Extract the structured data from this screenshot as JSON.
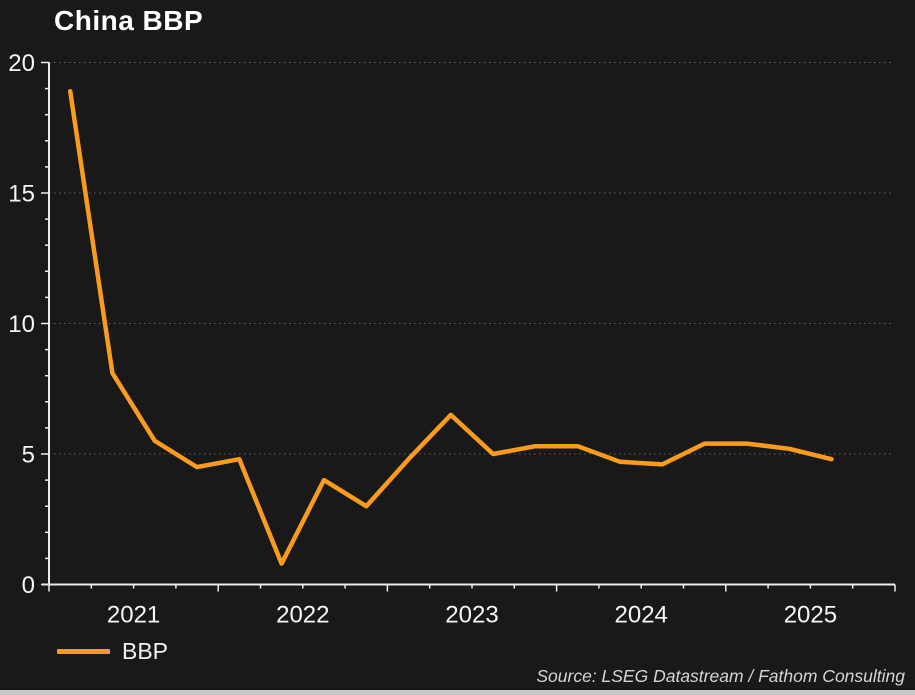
{
  "title": "China BBP",
  "legend": {
    "series_label": "BBP"
  },
  "source": "Source: LSEG Datastream / Fathom Consulting",
  "colors": {
    "background": "#191919",
    "line": "#F99B1C",
    "axis": "#ECECEC",
    "tick_label": "#F5F5F5",
    "grid": "#646464",
    "title_text": "#FFFFFF",
    "source_text": "#D5D5D5",
    "bottom_bar": "#C8C8C8"
  },
  "chart_data": {
    "type": "line",
    "title": "China BBP",
    "xlabel": "",
    "ylabel": "",
    "ylim": [
      0,
      20
    ],
    "yticks": [
      0,
      5,
      10,
      15,
      20
    ],
    "y_minor_tick_step": 1,
    "grid": "horizontal dotted gridlines at major y ticks",
    "legend_position": "bottom-left",
    "x_axis_years": [
      2021,
      2022,
      2023,
      2024,
      2025
    ],
    "x_axis_span": "Jan 2021 - Dec 2025, quarterly minor ticks",
    "series": [
      {
        "name": "BBP",
        "x": [
          "2021 Q1",
          "2021 Q2",
          "2021 Q3",
          "2021 Q4",
          "2022 Q1",
          "2022 Q2",
          "2022 Q3",
          "2022 Q4",
          "2023 Q1",
          "2023 Q2",
          "2023 Q3",
          "2023 Q4",
          "2024 Q1",
          "2024 Q2",
          "2024 Q3",
          "2024 Q4",
          "2025 Q1",
          "2025 Q2",
          "2025 Q3"
        ],
        "values": [
          18.9,
          8.1,
          5.5,
          4.5,
          4.8,
          0.8,
          4.0,
          3.0,
          4.8,
          6.5,
          5.0,
          5.3,
          5.3,
          4.7,
          4.6,
          5.4,
          5.4,
          5.2,
          4.8
        ]
      }
    ]
  }
}
